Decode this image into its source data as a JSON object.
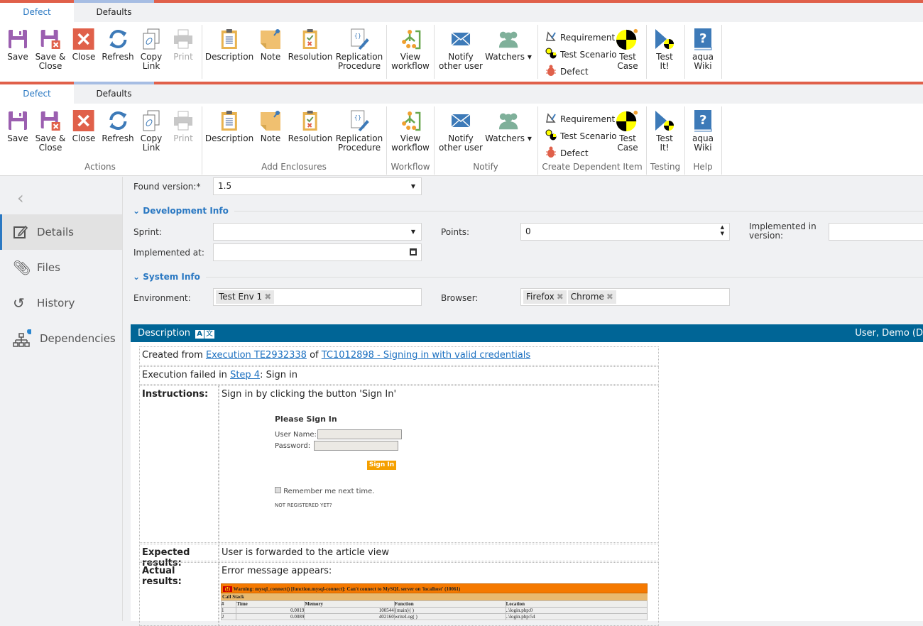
{
  "ribbon": {
    "tabs": [
      "Defect",
      "Defaults"
    ],
    "buttons": [
      {
        "id": "save",
        "icon": "save-icon",
        "label": "Save"
      },
      {
        "id": "save-close",
        "icon": "save-close-icon",
        "label": "Save &\nClose"
      },
      {
        "id": "close",
        "icon": "close-icon",
        "label": "Close"
      },
      {
        "id": "refresh",
        "icon": "refresh-icon",
        "label": "Refresh"
      },
      {
        "id": "copy-link",
        "icon": "copy-link-icon",
        "label": "Copy\nLink"
      },
      {
        "id": "print",
        "icon": "print-icon",
        "label": "Print",
        "disabled": true
      },
      {
        "id": "description",
        "icon": "clipboard-icon",
        "label": "Description"
      },
      {
        "id": "note",
        "icon": "note-icon",
        "label": "Note"
      },
      {
        "id": "resolution",
        "icon": "resolution-icon",
        "label": "Resolution"
      },
      {
        "id": "replication",
        "icon": "replication-procedure-icon",
        "label": "Replication\nProcedure"
      },
      {
        "id": "view-workflow",
        "icon": "workflow-icon",
        "label": "View\nworkflow"
      },
      {
        "id": "notify",
        "icon": "envelope-icon",
        "label": "Notify\nother user"
      },
      {
        "id": "watchers",
        "icon": "watchers-icon",
        "label": "Watchers ▾"
      },
      {
        "id": "test-case",
        "icon": "test-case-icon",
        "label": "Test\nCase"
      },
      {
        "id": "test-it",
        "icon": "test-it-icon",
        "label": "Test\nIt!"
      },
      {
        "id": "aqua-wiki",
        "icon": "help-book-icon",
        "label": "aqua\nWiki"
      }
    ],
    "dependent_items": [
      "Requirement",
      "Test Scenario",
      "Defect"
    ],
    "groups": [
      "Actions",
      "Add Enclosures",
      "Workflow",
      "Notify",
      "Create Dependent Item",
      "Testing",
      "Help"
    ]
  },
  "sidebar": {
    "items": [
      {
        "label": "Details",
        "icon": "edit-icon"
      },
      {
        "label": "Files",
        "icon": "paperclip-icon"
      },
      {
        "label": "History",
        "icon": "history-icon"
      },
      {
        "label": "Dependencies",
        "icon": "hierarchy-icon"
      }
    ]
  },
  "form": {
    "found_version_label": "Found version:*",
    "found_version": "1.5",
    "dev_info": "Development Info",
    "sprint_label": "Sprint:",
    "sprint": "",
    "points_label": "Points:",
    "points": "0",
    "impl_version_label": "Implemented in version:",
    "impl_version": "",
    "impl_at_label": "Implemented at:",
    "impl_at": "",
    "system_info": "System Info",
    "env_label": "Environment:",
    "env": [
      "Test Env 1"
    ],
    "browser_label": "Browser:",
    "browsers": [
      "Firefox",
      "Chrome"
    ]
  },
  "description": {
    "title": "Description",
    "user": "User, Demo (D",
    "created_prefix": "Created from ",
    "execution_link": "Execution TE2932338",
    "of": " of ",
    "tc_link": "TC1012898 - Signing in with valid credentials",
    "failed_prefix": "Execution failed in ",
    "step_link": "Step 4",
    "failed_suffix": ": Sign in",
    "instructions_label": "Instructions:",
    "instructions": "Sign in by clicking the button 'Sign In'",
    "signin": {
      "title": "Please Sign In",
      "user": "User Name:",
      "password": "Password:",
      "button": "Sign In",
      "remember": "Remember me next time.",
      "register": "NOT REGISTERED YET?"
    },
    "expected_label": "Expected results:",
    "expected": "User is forwarded to the article view",
    "actual_label": "Actual results:",
    "actual": "Error message appears:",
    "error": {
      "warning": "Warning: mysql_connect() [function.mysql-connect]: Can't connect to MySQL server on 'localhost' (10061)",
      "callstack": "Call Stack",
      "headers": [
        "#",
        "Time",
        "Memory",
        "Function",
        "Location"
      ],
      "rows": [
        [
          "1",
          "0.0019",
          "100544",
          "{main}( )",
          "..\\login.php:0"
        ],
        [
          "2",
          "0.0089",
          "402160",
          "writeLog( )",
          "..\\login.php:54"
        ]
      ]
    }
  }
}
